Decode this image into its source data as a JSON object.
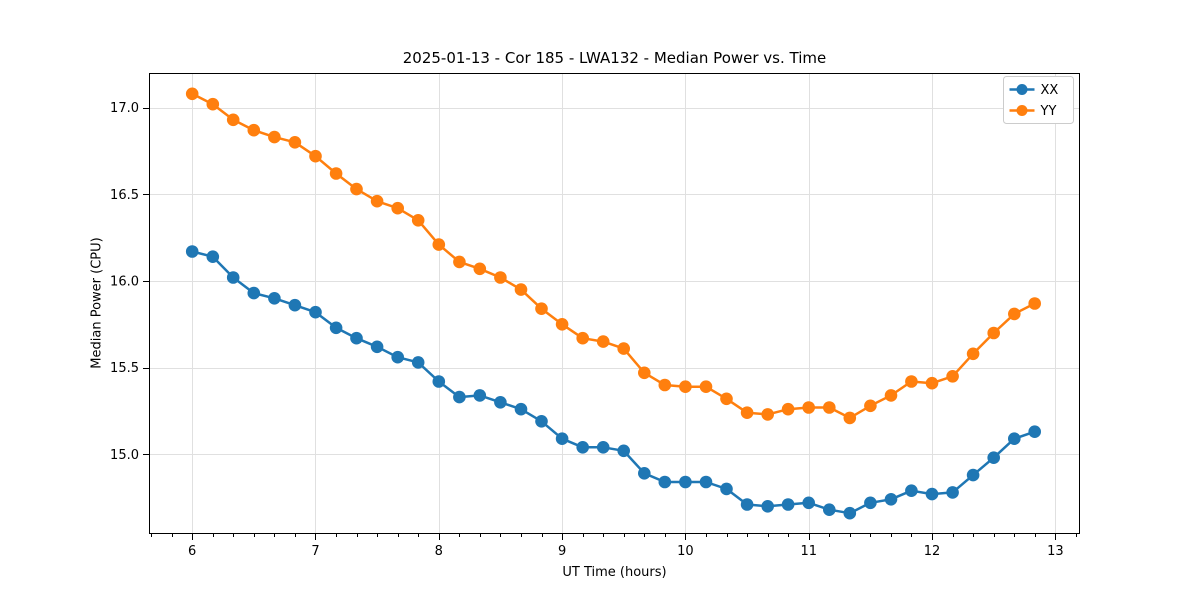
{
  "figure": {
    "background": "#ffffff",
    "text_color": "#000000",
    "grid_color": "#e0e0e0",
    "spine_color": "#000000"
  },
  "chart_data": {
    "type": "line",
    "title": "2025-01-13 - Cor 185 - LWA132 - Median Power vs. Time",
    "xlabel": "UT Time (hours)",
    "ylabel": "Median Power (CPU)",
    "xlim": [
      5.65,
      13.2
    ],
    "ylim": [
      14.54,
      17.2
    ],
    "x_ticks": [
      6,
      7,
      8,
      9,
      10,
      11,
      12,
      13
    ],
    "x_tick_labels": [
      "6",
      "7",
      "8",
      "9",
      "10",
      "11",
      "12",
      "13"
    ],
    "x_minor_step": 0.166667,
    "y_ticks": [
      15.0,
      15.5,
      16.0,
      16.5,
      17.0
    ],
    "y_tick_labels": [
      "15.0",
      "15.5",
      "16.0",
      "16.5",
      "17.0"
    ],
    "grid": true,
    "legend_position": "upper right",
    "x": [
      6.0,
      6.167,
      6.333,
      6.5,
      6.667,
      6.833,
      7.0,
      7.167,
      7.333,
      7.5,
      7.667,
      7.833,
      8.0,
      8.167,
      8.333,
      8.5,
      8.667,
      8.833,
      9.0,
      9.167,
      9.333,
      9.5,
      9.667,
      9.833,
      10.0,
      10.167,
      10.333,
      10.5,
      10.667,
      10.833,
      11.0,
      11.167,
      11.333,
      11.5,
      11.667,
      11.833,
      12.0,
      12.167,
      12.333,
      12.5,
      12.667,
      12.833
    ],
    "series": [
      {
        "name": "XX",
        "color": "#1f77b4",
        "values": [
          16.17,
          16.14,
          16.02,
          15.93,
          15.9,
          15.86,
          15.82,
          15.73,
          15.67,
          15.62,
          15.56,
          15.53,
          15.42,
          15.33,
          15.34,
          15.3,
          15.26,
          15.19,
          15.09,
          15.04,
          15.04,
          15.02,
          14.89,
          14.84,
          14.84,
          14.84,
          14.8,
          14.71,
          14.7,
          14.71,
          14.72,
          14.68,
          14.66,
          14.72,
          14.74,
          14.79,
          14.77,
          14.78,
          14.88,
          14.98,
          15.09,
          15.13
        ]
      },
      {
        "name": "YY",
        "color": "#ff7f0e",
        "values": [
          17.08,
          17.02,
          16.93,
          16.87,
          16.83,
          16.8,
          16.72,
          16.62,
          16.53,
          16.46,
          16.42,
          16.35,
          16.21,
          16.11,
          16.07,
          16.02,
          15.95,
          15.84,
          15.75,
          15.67,
          15.65,
          15.61,
          15.47,
          15.4,
          15.39,
          15.39,
          15.32,
          15.24,
          15.23,
          15.26,
          15.27,
          15.27,
          15.21,
          15.28,
          15.34,
          15.42,
          15.41,
          15.45,
          15.58,
          15.7,
          15.81,
          15.87
        ]
      }
    ]
  }
}
